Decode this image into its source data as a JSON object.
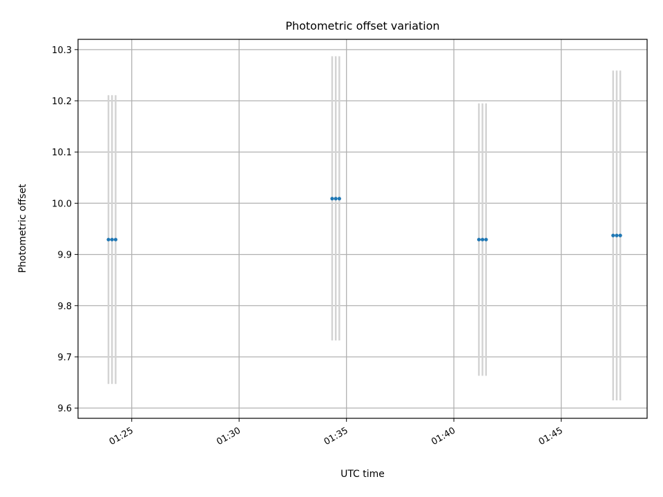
{
  "chart_data": {
    "type": "scatter",
    "title": "Photometric offset variation",
    "xlabel": "UTC time",
    "ylabel": "Photometric offset",
    "x_ticks": [
      "01:25",
      "01:30",
      "01:35",
      "01:40",
      "01:45"
    ],
    "y_ticks": [
      "9.6",
      "9.7",
      "9.8",
      "9.9",
      "10.0",
      "10.1",
      "10.2",
      "10.3"
    ],
    "xlim": [
      "01:22:30",
      "01:49:00"
    ],
    "ylim": [
      9.58,
      10.32
    ],
    "grid": true,
    "series": [
      {
        "x": [
          "01:23:55",
          "01:24:05",
          "01:24:15",
          "01:34:20",
          "01:34:30",
          "01:34:40",
          "01:41:10",
          "01:41:20",
          "01:41:30",
          "01:47:25",
          "01:47:35",
          "01:47:45"
        ],
        "y": [
          9.929,
          9.929,
          9.929,
          10.009,
          10.009,
          10.009,
          9.929,
          9.929,
          9.929,
          9.937,
          9.937,
          9.937
        ],
        "yerr_low": [
          9.647,
          9.647,
          9.647,
          9.732,
          9.732,
          9.732,
          9.663,
          9.663,
          9.663,
          9.615,
          9.615,
          9.615
        ],
        "yerr_high": [
          10.211,
          10.211,
          10.211,
          10.287,
          10.287,
          10.287,
          10.195,
          10.195,
          10.195,
          10.259,
          10.259,
          10.259
        ]
      }
    ],
    "colors": {
      "points": "#1f77b4",
      "errorbars": "#d3d3d3",
      "grid": "#b0b0b0"
    }
  }
}
